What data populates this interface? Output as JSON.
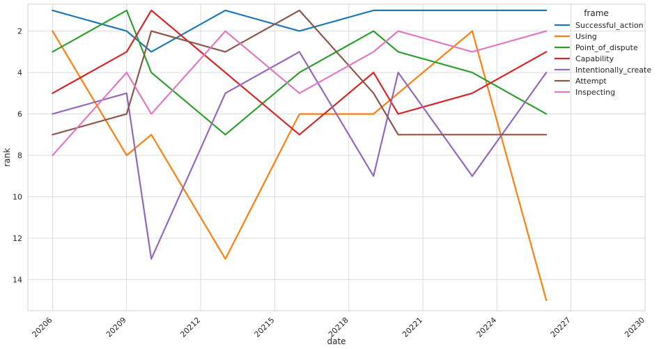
{
  "chart_data": {
    "type": "line",
    "xlabel": "date",
    "ylabel": "rank",
    "x": [
      20206,
      20209,
      20210,
      20213,
      20216,
      20219,
      20220,
      20223,
      20226
    ],
    "xticks": [
      20206,
      20209,
      20212,
      20215,
      20218,
      20221,
      20224,
      20227,
      20230
    ],
    "xlim": [
      20205,
      20230
    ],
    "yticks": [
      2,
      4,
      6,
      8,
      10,
      12,
      14
    ],
    "ylim": [
      15.5,
      0.7
    ],
    "y_inverted": true,
    "grid": true,
    "legend": {
      "title": "frame",
      "placement": "top-right"
    },
    "series": [
      {
        "name": "Successful_action",
        "color": "#1f77b4",
        "values": [
          1,
          2,
          3,
          1,
          2,
          1,
          1,
          1,
          1
        ]
      },
      {
        "name": "Using",
        "color": "#ff7f0e",
        "values": [
          2,
          8,
          7,
          13,
          6,
          6,
          5,
          2,
          15
        ]
      },
      {
        "name": "Point_of_dispute",
        "color": "#2ca02c",
        "values": [
          3,
          1,
          4,
          7,
          4,
          2,
          3,
          4,
          6
        ]
      },
      {
        "name": "Capability",
        "color": "#d62728",
        "values": [
          5,
          3,
          1,
          4,
          7,
          4,
          6,
          5,
          3
        ]
      },
      {
        "name": "Intentionally_create",
        "color": "#9467bd",
        "values": [
          6,
          5,
          13,
          5,
          3,
          9,
          4,
          9,
          4
        ]
      },
      {
        "name": "Attempt",
        "color": "#8c564b",
        "values": [
          7,
          6,
          2,
          3,
          1,
          5,
          7,
          7,
          7
        ]
      },
      {
        "name": "Inspecting",
        "color": "#e377c2",
        "values": [
          8,
          4,
          6,
          2,
          5,
          3,
          2,
          3,
          2
        ]
      }
    ]
  }
}
